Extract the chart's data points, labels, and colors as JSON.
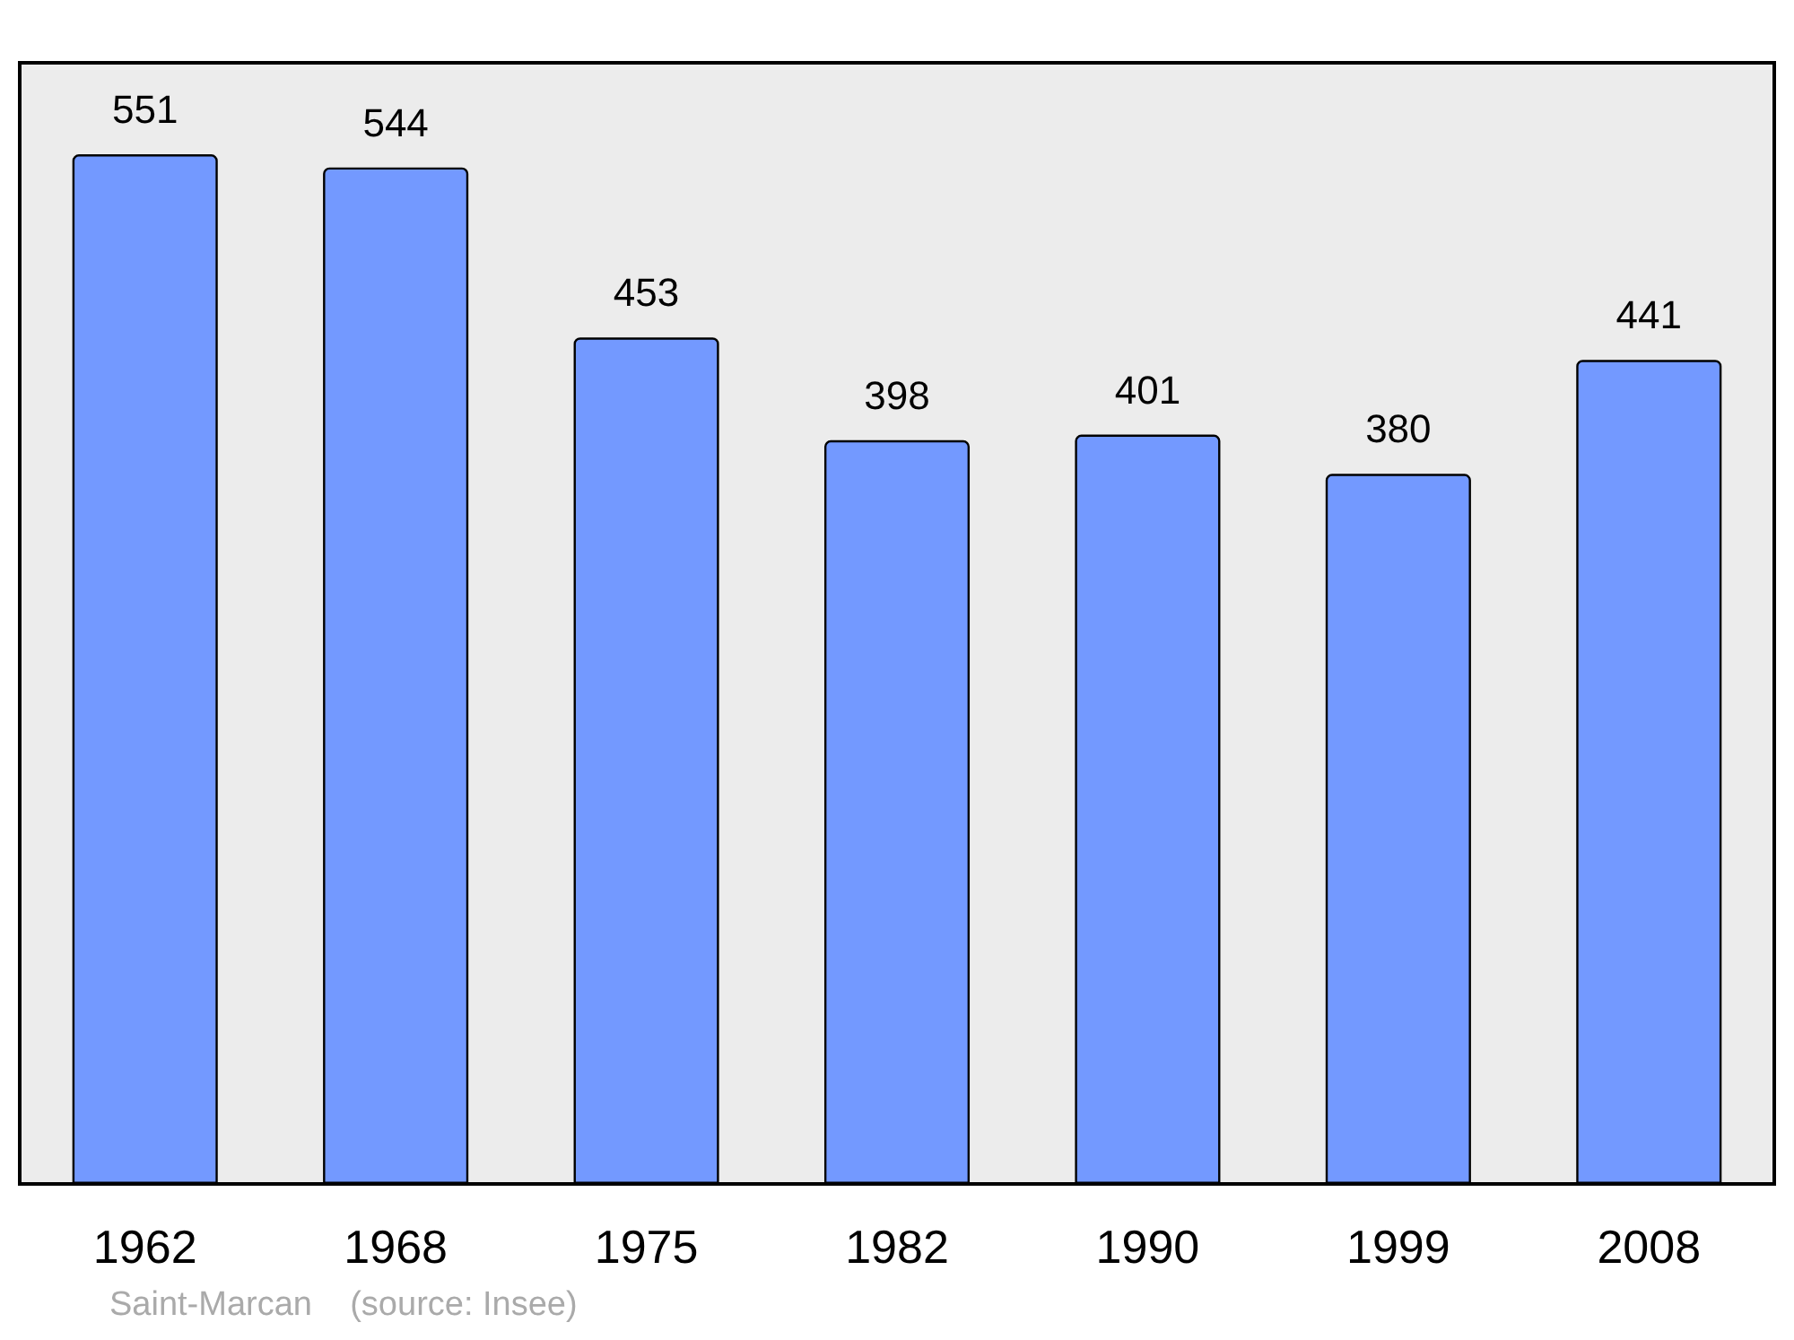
{
  "chart_data": {
    "type": "bar",
    "categories": [
      "1962",
      "1968",
      "1975",
      "1982",
      "1990",
      "1999",
      "2008"
    ],
    "values": [
      551,
      544,
      453,
      398,
      401,
      380,
      441
    ],
    "color": "#7399ff",
    "data_labels": true,
    "annotations": [
      "Saint-Marcan    (source: Insee)"
    ]
  }
}
